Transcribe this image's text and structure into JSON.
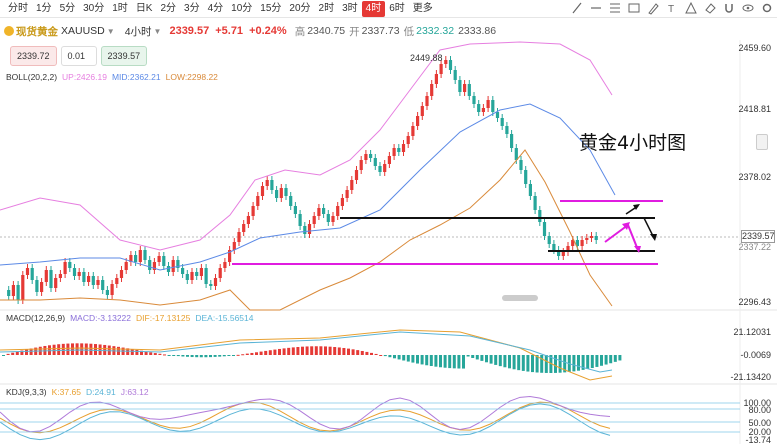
{
  "timeframes": [
    "分时",
    "1分",
    "5分",
    "30分",
    "1时",
    "日K",
    "2分",
    "3分",
    "4分",
    "10分",
    "15分",
    "20分",
    "2时",
    "3时",
    "4时",
    "6时",
    "更多"
  ],
  "active_timeframe": "4时",
  "quote": {
    "symbol": "现货黄金",
    "code": "XAUUSD",
    "interval": "4小时",
    "price": "2339.57",
    "change": "+5.71",
    "change_pct": "+0.24%",
    "high_label": "高",
    "high": "2340.75",
    "open_label": "开",
    "open": "2337.73",
    "low_label": "低",
    "low": "2332.32",
    "close": "2333.86"
  },
  "order": {
    "sell": "2339.72",
    "lot": "0.01",
    "buy": "2339.57"
  },
  "boll": {
    "name": "BOLL(20,2,2)",
    "up": "UP:2426.19",
    "mid": "MID:2362.21",
    "low": "LOW:2298.22"
  },
  "macd": {
    "name": "MACD(12,26,9)",
    "macd": "MACD:-3.13222",
    "dif": "DIF:-17.13125",
    "dea": "DEA:-15.56514"
  },
  "kdj": {
    "name": "KDJ(9,3,3)",
    "k": "K:37.65",
    "d": "D:24.91",
    "j": "J:63.12"
  },
  "price_axis": [
    "2459.60",
    "2418.81",
    "2378.02",
    "2339.57",
    "2337.22",
    "2296.43"
  ],
  "macd_axis": [
    "21.12031",
    "-0.0069",
    "-21.13420"
  ],
  "kdj_axis": [
    "100.00",
    "80.00",
    "50.00",
    "20.00",
    "-13.74"
  ],
  "high_marker": "2449.88",
  "annotation": "黄金4小时图",
  "colors": {
    "up": "#e53935",
    "down": "#26a69a",
    "magenta": "#e01ce0",
    "accent": "#e53935"
  },
  "icons": [
    "trendline-icon",
    "horizontal-line-icon",
    "fib-icon",
    "text-icon",
    "brush-icon",
    "measure-icon",
    "eraser-icon",
    "magnet-icon",
    "eye-icon",
    "settings-icon",
    "fullscreen-icon"
  ]
}
